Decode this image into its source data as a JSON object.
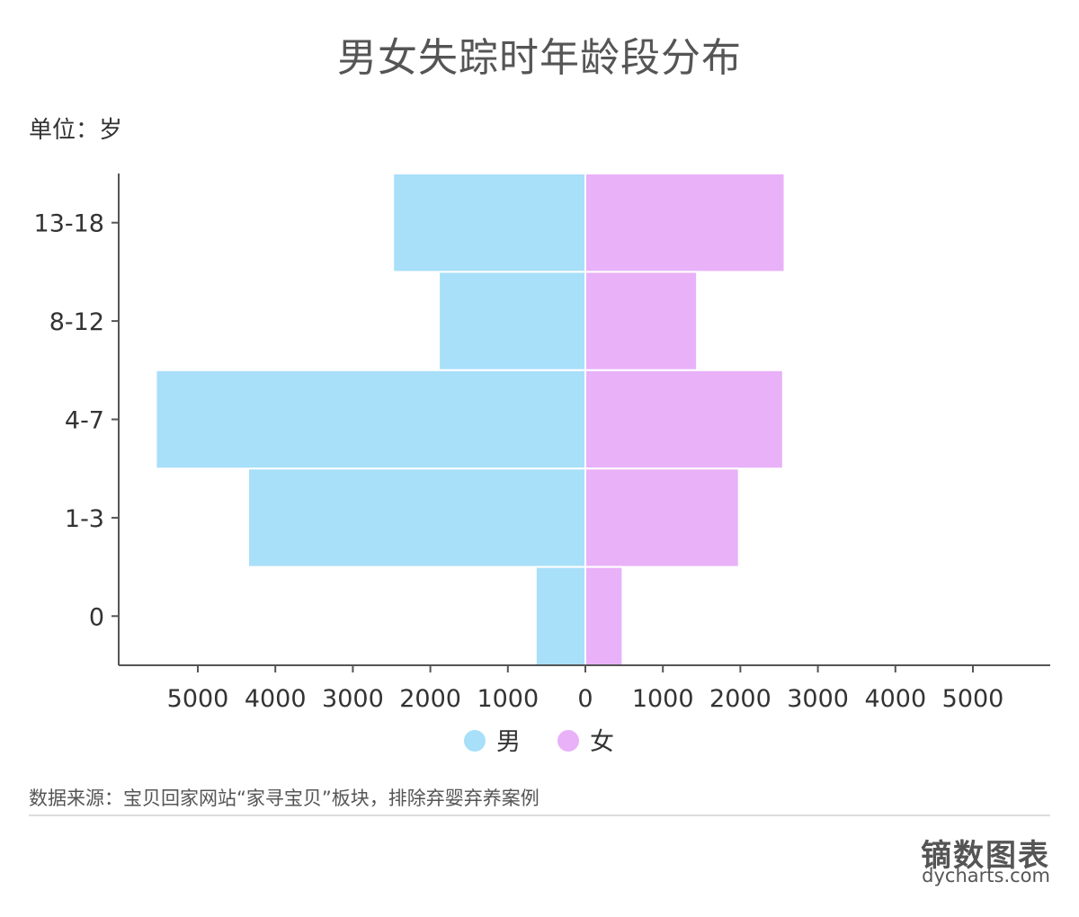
{
  "title": "男女失踪时年龄段分布",
  "unit": "单位：岁",
  "source": "数据来源：宝贝回家网站“家寻宝贝”板块，排除弃婴弃养案例",
  "brand": {
    "cn": "镝数图表",
    "en": "dycharts.com"
  },
  "chart_data": {
    "type": "bar",
    "orientation": "horizontal-diverging",
    "title": "男女失踪时年龄段分布",
    "categories": [
      "13-18",
      "8-12",
      "4-7",
      "1-3",
      "0"
    ],
    "series": [
      {
        "name": "男",
        "color": "#A8DFF9",
        "values": [
          2480,
          1890,
          5540,
          4350,
          640
        ]
      },
      {
        "name": "女",
        "color": "#E9B1F8",
        "values": [
          2570,
          1440,
          2550,
          1980,
          480
        ]
      }
    ],
    "x_ticks": [
      -5000,
      -4000,
      -3000,
      -2000,
      -1000,
      0,
      1000,
      2000,
      3000,
      4000,
      5000
    ],
    "x_tick_labels": [
      "5000",
      "4000",
      "3000",
      "2000",
      "1000",
      "0",
      "1000",
      "2000",
      "3000",
      "4000",
      "5000"
    ],
    "xlim": [
      -6000,
      6000
    ],
    "xlabel": "",
    "ylabel": "",
    "legend_position": "bottom-center",
    "grid": false
  }
}
